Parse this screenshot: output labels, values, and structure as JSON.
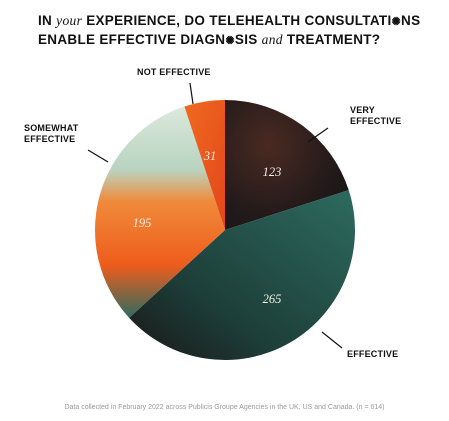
{
  "title": {
    "w1": "IN",
    "w2": "your",
    "w3": "EXPERIENCE, DO TELEHEALTH CONSULTATI",
    "glyph1": "✺",
    "w4": "NS",
    "w5": "ENABLE EFFECTIVE DIAGN",
    "glyph2": "✺",
    "w6": "SIS",
    "w7": "and",
    "w8": "TREATMENT?"
  },
  "chart_data": {
    "type": "pie",
    "title": "IN your EXPERIENCE, DO TELEHEALTH CONSULTATIONS ENABLE EFFECTIVE DIAGNOSIS and TREATMENT?",
    "slices": [
      {
        "label": "VERY EFFECTIVE",
        "value": 123,
        "color": "#2a1f1e"
      },
      {
        "label": "EFFECTIVE",
        "value": 265,
        "color": "#1f5049"
      },
      {
        "label": "SOMEWHAT EFFECTIVE",
        "value": 195,
        "color": "#ef6a22"
      },
      {
        "label": "NOT EFFECTIVE",
        "value": 31,
        "color": "#e8521a"
      }
    ],
    "extra_color": "#cfe3d3",
    "n": "(n = 614)"
  },
  "callouts": {
    "very_1": "VERY",
    "very_2": "EFFECTIVE",
    "effective": "EFFECTIVE",
    "somewhat_1": "SOMEWHAT",
    "somewhat_2": "EFFECTIVE",
    "not": "NOT EFFECTIVE"
  },
  "footnote": "Data collected in February 2022 across Publicis Groupe Agencies in the UK, US and Canada. (n = 614)"
}
